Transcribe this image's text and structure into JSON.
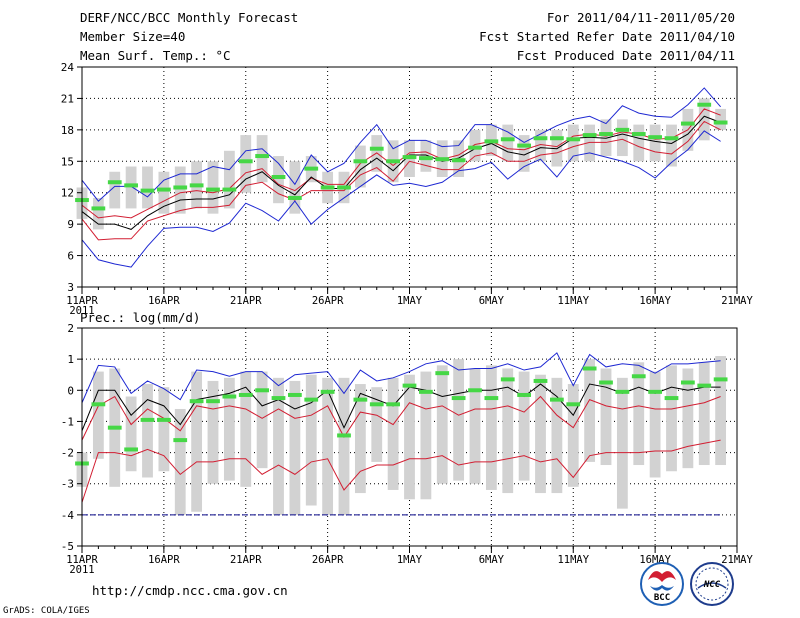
{
  "header": {
    "title": "DERF/NCC/BCC Monthly Forecast",
    "member_size": "Member Size=40",
    "variable": "Mean Surf. Temp.: °C",
    "period": "For 2011/04/11-2011/05/20",
    "started": "Fcst Started Refer Date 2011/04/10",
    "produced": "Fcst Produced Date 2011/04/11"
  },
  "footer": {
    "url": "http://cmdp.ncc.cma.gov.cn",
    "credit": "GrADS: COLA/IGES",
    "logo_bcc": "BCC",
    "logo_ncc": "NCC"
  },
  "colors": {
    "envelope": "#1e28d2",
    "spread": "#d21e32",
    "median": "#000000",
    "box": "#d2d2d2",
    "marker": "#46d746",
    "baseline": "#0a0a8c"
  },
  "chart_data": [
    {
      "type": "box",
      "title": "Mean Surf. Temp.: °C",
      "ylim": [
        3,
        24
      ],
      "yticks": [
        3,
        6,
        9,
        12,
        15,
        18,
        21,
        24
      ],
      "xlim": [
        11,
        51
      ],
      "x_tick_values": [
        11,
        16,
        21,
        26,
        31,
        36,
        41,
        46,
        51
      ],
      "x_tick_labels": [
        "11APR",
        "16APR",
        "21APR",
        "26APR",
        "1MAY",
        "6MAY",
        "11MAY",
        "16MAY",
        "21MAY"
      ],
      "year_label": "2011",
      "days": [
        11,
        12,
        13,
        14,
        15,
        16,
        17,
        18,
        19,
        20,
        21,
        22,
        23,
        24,
        25,
        26,
        27,
        28,
        29,
        30,
        31,
        32,
        33,
        34,
        35,
        36,
        37,
        38,
        39,
        40,
        41,
        42,
        43,
        44,
        45,
        46,
        47,
        48,
        49,
        50
      ],
      "box_low": [
        9.5,
        8.5,
        10.5,
        10.5,
        10.5,
        10,
        10,
        10.5,
        10,
        10.5,
        12,
        13,
        11,
        10,
        13,
        11,
        11,
        12.5,
        14,
        13,
        13.5,
        14,
        13.5,
        13.5,
        15,
        15.5,
        15,
        14,
        15,
        14.5,
        15,
        15,
        15.5,
        15.5,
        15,
        15,
        14.5,
        16,
        17,
        18
      ],
      "box_high": [
        12.5,
        11.5,
        14,
        14.5,
        14.5,
        14,
        14.5,
        15,
        15,
        16,
        17.5,
        17.5,
        15.5,
        15,
        15.5,
        14,
        14,
        16.5,
        17.5,
        17,
        17,
        17,
        17,
        17,
        18,
        18.5,
        18.5,
        17.5,
        18,
        18,
        18.5,
        18.5,
        19,
        19,
        18.5,
        18.5,
        18.5,
        20,
        21,
        20
      ],
      "marker": [
        11.3,
        10.5,
        13,
        12.7,
        12.2,
        12.3,
        12.5,
        12.7,
        12.3,
        12.3,
        15,
        15.5,
        13.5,
        11.5,
        14.3,
        12.5,
        12.5,
        15,
        16.2,
        15,
        15.4,
        15.3,
        15.2,
        15.1,
        16.3,
        16.9,
        17.1,
        16.5,
        17.2,
        17.2,
        17.1,
        17.5,
        17.6,
        18,
        17.6,
        17.3,
        17.2,
        18.6,
        20.4,
        18.7
      ],
      "series": [
        {
          "name": "ensemble max",
          "color": "#1e28d2",
          "values": [
            13.2,
            11.2,
            12.6,
            12.6,
            11.6,
            13.2,
            13.8,
            13.8,
            14.5,
            14.2,
            16,
            16.2,
            14.8,
            12.8,
            15.6,
            14,
            14.8,
            16.8,
            18.5,
            16.2,
            17,
            17,
            16.4,
            16.5,
            18.5,
            18.5,
            17.8,
            16.8,
            17.6,
            18.4,
            19,
            19.3,
            18.6,
            20.3,
            19.6,
            19.3,
            19.2,
            20.4,
            22,
            20.2
          ]
        },
        {
          "name": "upper spread",
          "color": "#d21e32",
          "values": [
            10.8,
            9.6,
            9.8,
            9.6,
            10.4,
            11.2,
            12,
            12.2,
            12,
            12.4,
            13.9,
            14.3,
            12.8,
            12.2,
            13.4,
            12.8,
            12.8,
            14.8,
            15.8,
            14.6,
            15.8,
            15.9,
            15.2,
            15.6,
            16.6,
            16.9,
            16.2,
            16.1,
            16.6,
            16.4,
            17.4,
            17.6,
            17.4,
            17.8,
            17.6,
            17.1,
            17.2,
            18,
            20,
            19.4
          ]
        },
        {
          "name": "ensemble median",
          "color": "#000000",
          "values": [
            10.2,
            9,
            9,
            8.5,
            9.8,
            10.7,
            11.3,
            11.4,
            11.4,
            11.8,
            13.3,
            14,
            12.7,
            11.8,
            13.5,
            12.4,
            12.4,
            14.2,
            15.3,
            14.1,
            15.6,
            15.6,
            15,
            15.3,
            16.2,
            16.7,
            15.9,
            15.6,
            16.3,
            16.2,
            17.2,
            17.3,
            17.2,
            17.6,
            17.2,
            16.9,
            16.7,
            17.6,
            19.3,
            18.7
          ]
        },
        {
          "name": "lower spread",
          "color": "#d21e32",
          "values": [
            9.5,
            7.5,
            7.6,
            7.6,
            9.3,
            9.8,
            10.3,
            10.6,
            10.6,
            10.8,
            12.7,
            13,
            11.9,
            11.3,
            12.2,
            12.2,
            12.2,
            13.7,
            14.4,
            13.1,
            15,
            14.6,
            14.2,
            14.2,
            15.5,
            15.8,
            15,
            15,
            15.6,
            15.8,
            16.4,
            16.8,
            16.8,
            17.1,
            16.4,
            15.9,
            15.7,
            16.9,
            18.8,
            18
          ]
        },
        {
          "name": "ensemble min",
          "color": "#1e28d2",
          "values": [
            7.5,
            5.6,
            5.2,
            4.9,
            6.9,
            8.6,
            8.7,
            8.7,
            8.3,
            9.1,
            11,
            10.3,
            9.3,
            11.2,
            9,
            10.4,
            11.5,
            12.6,
            13.7,
            12.7,
            12.9,
            12.6,
            13,
            14.1,
            14.3,
            14.9,
            13.3,
            14.5,
            15.2,
            13.5,
            15.5,
            15.8,
            15.4,
            15,
            14.4,
            13.4,
            14.9,
            16.1,
            17.9,
            16.9
          ]
        }
      ]
    },
    {
      "type": "box",
      "title": "Prec.: log(mm/d)",
      "ylim": [
        -5,
        2
      ],
      "yticks": [
        -5,
        -4,
        -3,
        -2,
        -1,
        0,
        1,
        2
      ],
      "xlim": [
        11,
        51
      ],
      "x_tick_values": [
        11,
        16,
        21,
        26,
        31,
        36,
        41,
        46,
        51
      ],
      "x_tick_labels": [
        "11APR",
        "16APR",
        "21APR",
        "26APR",
        "1MAY",
        "6MAY",
        "11MAY",
        "16MAY",
        "21MAY"
      ],
      "year_label": "2011",
      "days": [
        11,
        12,
        13,
        14,
        15,
        16,
        17,
        18,
        19,
        20,
        21,
        22,
        23,
        24,
        25,
        26,
        27,
        28,
        29,
        30,
        31,
        32,
        33,
        34,
        35,
        36,
        37,
        38,
        39,
        40,
        41,
        42,
        43,
        44,
        45,
        46,
        47,
        48,
        49,
        50
      ],
      "box_low": [
        -3.1,
        -2.2,
        -3.1,
        -2.6,
        -2.8,
        -2.6,
        -4,
        -3.9,
        -3,
        -2.9,
        -3.1,
        -2.5,
        -4,
        -4,
        -3.7,
        -4,
        -4,
        -3.3,
        -2.3,
        -3.2,
        -3.5,
        -3.5,
        -3,
        -2.9,
        -3,
        -3.2,
        -3.3,
        -2.9,
        -3.3,
        -3.3,
        -3.1,
        -2.3,
        -2.4,
        -3.8,
        -2.4,
        -2.8,
        -2.6,
        -2.5,
        -2.4,
        -2.4
      ],
      "box_high": [
        -2,
        0.6,
        0.7,
        -0.2,
        0.2,
        0.1,
        -0.6,
        0.6,
        0.3,
        0.4,
        0.6,
        0.6,
        0.4,
        0.3,
        0.5,
        0.4,
        0.4,
        0.2,
        0.1,
        0.4,
        0.5,
        0.6,
        0.8,
        1,
        0.7,
        0.8,
        0.7,
        0.6,
        0.5,
        0.4,
        0.2,
        1,
        0.7,
        0.4,
        0.9,
        0.6,
        0.8,
        0.7,
        0.9,
        1.1
      ],
      "marker": [
        -2.35,
        -0.45,
        -1.2,
        -1.9,
        -0.95,
        -0.95,
        -1.6,
        -0.35,
        -0.35,
        -0.2,
        -0.15,
        0,
        -0.25,
        -0.15,
        -0.3,
        -0.05,
        -1.45,
        -0.3,
        -0.45,
        -0.45,
        0.15,
        -0.05,
        0.55,
        -0.25,
        0.0,
        -0.25,
        0.35,
        -0.15,
        0.3,
        -0.3,
        -0.45,
        0.7,
        0.25,
        -0.05,
        0.45,
        -0.05,
        -0.25,
        0.25,
        0.15,
        0.35
      ],
      "series": [
        {
          "name": "ensemble max",
          "color": "#1e28d2",
          "values": [
            -0.4,
            0.8,
            0.75,
            -0.1,
            0.3,
            0.05,
            -0.3,
            0.65,
            0.6,
            0.45,
            0.6,
            0.6,
            0.15,
            0.5,
            0.55,
            0.6,
            -0.1,
            0.65,
            0.3,
            0.4,
            0.6,
            0.85,
            0.95,
            0.65,
            0.7,
            0.7,
            0.85,
            0.65,
            0.75,
            1.2,
            0.15,
            1.15,
            0.75,
            0.85,
            0.8,
            0.55,
            0.85,
            0.85,
            0.9,
            0.95
          ]
        },
        {
          "name": "ensemble median",
          "color": "#000000",
          "values": [
            -1.3,
            0,
            0,
            -0.8,
            -0.3,
            -0.5,
            -1.1,
            -0.3,
            -0.2,
            -0.1,
            0.1,
            -0.5,
            -0.3,
            -0.6,
            -0.4,
            0,
            -1.2,
            -0.1,
            -0.3,
            -0.5,
            0.1,
            0,
            -0.2,
            -0.1,
            0,
            0,
            0.1,
            -0.2,
            0.2,
            -0.2,
            -0.8,
            0.2,
            0.1,
            -0.1,
            0.1,
            -0.1,
            0.1,
            0,
            0.1,
            0.1
          ]
        },
        {
          "name": "upper spread",
          "color": "#d21e32",
          "values": [
            -1.6,
            -0.5,
            -0.2,
            -1.1,
            -0.6,
            -0.9,
            -1.3,
            -0.5,
            -0.6,
            -0.5,
            -0.6,
            -0.9,
            -0.6,
            -0.9,
            -0.8,
            -0.5,
            -1.5,
            -0.7,
            -0.8,
            -1.1,
            -0.4,
            -0.6,
            -0.5,
            -0.8,
            -0.6,
            -0.6,
            -0.5,
            -0.7,
            -0.2,
            -0.8,
            -1.2,
            -0.3,
            -0.5,
            -0.6,
            -0.5,
            -0.6,
            -0.6,
            -0.5,
            -0.4,
            -0.2
          ]
        },
        {
          "name": "lower spread",
          "color": "#d21e32",
          "values": [
            -3.6,
            -2,
            -2,
            -2.1,
            -1.9,
            -2.1,
            -2.7,
            -2.3,
            -2.3,
            -2.2,
            -2.2,
            -2.7,
            -2.4,
            -2.7,
            -2.3,
            -2.2,
            -3.2,
            -2.6,
            -2.4,
            -2.4,
            -2.2,
            -2.2,
            -2.1,
            -2.4,
            -2.3,
            -2.3,
            -2.2,
            -2.1,
            -2.3,
            -2.2,
            -2.8,
            -2.1,
            -2,
            -2,
            -2,
            -1.95,
            -1.95,
            -1.8,
            -1.7,
            -1.6
          ]
        },
        {
          "name": "baseline",
          "color": "#0a0a8c",
          "values": [
            -4,
            -4,
            -4,
            -4,
            -4,
            -4,
            -4,
            -4,
            -4,
            -4,
            -4,
            -4,
            -4,
            -4,
            -4,
            -4,
            -4,
            -4,
            -4,
            -4,
            -4,
            -4,
            -4,
            -4,
            -4,
            -4,
            -4,
            -4,
            -4,
            -4,
            -4,
            -4,
            -4,
            -4,
            -4,
            -4,
            -4,
            -4,
            -4,
            -4
          ]
        }
      ]
    }
  ]
}
